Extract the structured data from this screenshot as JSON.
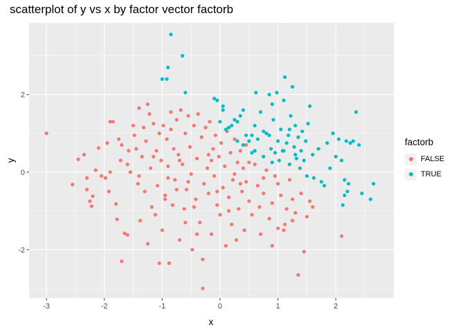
{
  "chart_data": {
    "type": "scatter",
    "title": "scatterplot of y vs x by factor vector factorb",
    "xlabel": "x",
    "ylabel": "y",
    "xlim": [
      -3.3,
      3.0
    ],
    "ylim": [
      -3.25,
      3.85
    ],
    "x_ticks": [
      -3,
      -2,
      -1,
      0,
      1,
      2
    ],
    "x_tick_labels": [
      "-3",
      "-2",
      "-1",
      "0",
      "1",
      "2"
    ],
    "y_ticks": [
      -2,
      0,
      2
    ],
    "y_tick_labels": [
      "-2",
      "0",
      "2"
    ],
    "grid": true,
    "legend": {
      "title": "factorb",
      "position": "right"
    },
    "series": [
      {
        "name": "FALSE",
        "color": "#F8766D",
        "points": [
          [
            -3.0,
            1.0
          ],
          [
            -2.55,
            -0.32
          ],
          [
            -2.45,
            0.33
          ],
          [
            -2.35,
            0.45
          ],
          [
            -2.3,
            -0.15
          ],
          [
            -2.25,
            -0.75
          ],
          [
            -2.22,
            -0.88
          ],
          [
            -2.2,
            -0.62
          ],
          [
            -2.15,
            0.05
          ],
          [
            -2.1,
            0.62
          ],
          [
            -2.05,
            -0.1
          ],
          [
            -1.98,
            -0.15
          ],
          [
            -1.95,
            0.75
          ],
          [
            -1.92,
            -0.5
          ],
          [
            -1.9,
            1.3
          ],
          [
            -1.85,
            1.3
          ],
          [
            -1.8,
            -0.82
          ],
          [
            -1.78,
            -1.22
          ],
          [
            -1.75,
            0.85
          ],
          [
            -1.72,
            0.3
          ],
          [
            -1.7,
            -2.3
          ],
          [
            -1.65,
            -1.58
          ],
          [
            -1.6,
            -1.62
          ],
          [
            -1.58,
            0.55
          ],
          [
            -1.55,
            0.0
          ],
          [
            -1.5,
            1.2
          ],
          [
            -1.48,
            0.95
          ],
          [
            -1.45,
            0.6
          ],
          [
            -1.42,
            -0.3
          ],
          [
            -1.4,
            1.65
          ],
          [
            -1.38,
            -1.25
          ],
          [
            -1.35,
            0.4
          ],
          [
            -1.32,
            1.15
          ],
          [
            -1.3,
            -0.5
          ],
          [
            -1.28,
            0.8
          ],
          [
            -1.25,
            1.75
          ],
          [
            -1.22,
            1.5
          ],
          [
            -1.2,
            0.1
          ],
          [
            -1.18,
            -0.9
          ],
          [
            -1.15,
            1.25
          ],
          [
            -1.12,
            -1.1
          ],
          [
            -1.1,
            0.55
          ],
          [
            -1.08,
            -0.35
          ],
          [
            -1.05,
            1.0
          ],
          [
            -1.02,
            0.3
          ],
          [
            -1.0,
            -1.5
          ],
          [
            -0.98,
            1.2
          ],
          [
            -0.95,
            -0.6
          ],
          [
            -0.92,
            0.85
          ],
          [
            -0.9,
            0.15
          ],
          [
            -0.88,
            -2.35
          ],
          [
            -0.85,
            1.1
          ],
          [
            -0.82,
            -0.85
          ],
          [
            -0.8,
            0.6
          ],
          [
            -0.78,
            -0.2
          ],
          [
            -0.75,
            1.35
          ],
          [
            -0.72,
            0.45
          ],
          [
            -0.7,
            -1.75
          ],
          [
            -0.68,
            1.6
          ],
          [
            -0.65,
            0.2
          ],
          [
            -0.62,
            -0.95
          ],
          [
            -0.6,
            1.0
          ],
          [
            -0.58,
            -0.45
          ],
          [
            -0.55,
            1.45
          ],
          [
            -0.52,
            0.65
          ],
          [
            -0.5,
            -0.05
          ],
          [
            -0.48,
            -2.0
          ],
          [
            -0.45,
            1.2
          ],
          [
            -0.42,
            -0.7
          ],
          [
            -0.4,
            0.35
          ],
          [
            -0.38,
            1.5
          ],
          [
            -0.35,
            -1.3
          ],
          [
            -0.32,
            0.9
          ],
          [
            -0.3,
            -2.25
          ],
          [
            -0.28,
            -0.3
          ],
          [
            -0.25,
            1.15
          ],
          [
            -0.22,
            0.1
          ],
          [
            -0.2,
            -0.55
          ],
          [
            -0.18,
            1.3
          ],
          [
            -0.15,
            -1.6
          ],
          [
            -0.12,
            0.6
          ],
          [
            -0.1,
            -0.1
          ],
          [
            -0.08,
            0.95
          ],
          [
            -0.05,
            -0.85
          ],
          [
            -0.02,
            0.4
          ],
          [
            0.0,
            -1.1
          ],
          [
            0.02,
            0.75
          ],
          [
            0.05,
            -0.4
          ],
          [
            0.08,
            0.15
          ],
          [
            0.1,
            -1.9
          ],
          [
            0.12,
            1.05
          ],
          [
            0.15,
            -0.65
          ],
          [
            0.18,
            0.5
          ],
          [
            0.2,
            -1.35
          ],
          [
            0.22,
            -0.2
          ],
          [
            0.25,
            0.85
          ],
          [
            0.28,
            -1.75
          ],
          [
            0.3,
            0.25
          ],
          [
            0.32,
            -0.95
          ],
          [
            0.35,
            0.55
          ],
          [
            0.38,
            -0.5
          ],
          [
            0.4,
            0.1
          ],
          [
            0.42,
            -1.5
          ],
          [
            0.45,
            -0.25
          ],
          [
            0.5,
            -0.75
          ],
          [
            0.55,
            -1.1
          ],
          [
            0.6,
            0.2
          ],
          [
            0.65,
            -0.35
          ],
          [
            0.7,
            -1.6
          ],
          [
            0.75,
            -0.55
          ],
          [
            0.8,
            0.05
          ],
          [
            0.85,
            -1.2
          ],
          [
            0.9,
            -0.8
          ],
          [
            0.95,
            -0.1
          ],
          [
            1.0,
            -1.45
          ],
          [
            1.05,
            -0.6
          ],
          [
            1.1,
            -1.5
          ],
          [
            1.12,
            -1.35
          ],
          [
            1.15,
            -0.95
          ],
          [
            1.2,
            -0.2
          ],
          [
            1.25,
            -0.7
          ],
          [
            1.3,
            -1.05
          ],
          [
            1.35,
            -2.65
          ],
          [
            1.4,
            -0.55
          ],
          [
            1.45,
            -2.05
          ],
          [
            1.5,
            -1.15
          ],
          [
            1.55,
            -0.75
          ],
          [
            1.6,
            -0.9
          ],
          [
            2.1,
            -1.65
          ],
          [
            -0.6,
            -1.3
          ],
          [
            -0.9,
            -0.15
          ],
          [
            -1.6,
            0.2
          ],
          [
            -0.3,
            -3.0
          ],
          [
            -1.05,
            -2.35
          ],
          [
            -0.7,
            0.3
          ],
          [
            -0.45,
            -0.9
          ],
          [
            -0.2,
            0.45
          ],
          [
            0.45,
            0.7
          ],
          [
            -1.25,
            -1.85
          ],
          [
            -0.85,
            1.55
          ],
          [
            -0.15,
            0.3
          ],
          [
            0.25,
            -0.05
          ],
          [
            0.68,
            -0.9
          ],
          [
            1.0,
            -0.3
          ],
          [
            -1.9,
            0.0
          ],
          [
            -2.3,
            -0.45
          ],
          [
            -1.4,
            -0.1
          ],
          [
            -0.55,
            -0.25
          ],
          [
            0.15,
            -1.0
          ],
          [
            0.5,
            0.25
          ],
          [
            0.9,
            -1.9
          ],
          [
            1.25,
            -1.25
          ],
          [
            -0.95,
            -0.7
          ],
          [
            -0.4,
            -1.6
          ],
          [
            -1.15,
            0.4
          ],
          [
            -0.75,
            -0.45
          ],
          [
            -0.05,
            -0.5
          ],
          [
            0.35,
            -0.3
          ],
          [
            0.75,
            -0.15
          ],
          [
            -1.7,
            0.7
          ]
        ]
      },
      {
        "name": "TRUE",
        "color": "#00BFC4",
        "points": [
          [
            -0.85,
            3.55
          ],
          [
            -0.65,
            3.0
          ],
          [
            -0.9,
            2.7
          ],
          [
            -1.0,
            2.4
          ],
          [
            -0.92,
            2.4
          ],
          [
            -0.6,
            2.05
          ],
          [
            -0.1,
            1.9
          ],
          [
            -0.05,
            1.85
          ],
          [
            0.05,
            1.7
          ],
          [
            0.05,
            1.6
          ],
          [
            0.0,
            1.3
          ],
          [
            0.1,
            1.1
          ],
          [
            0.15,
            1.15
          ],
          [
            0.2,
            1.2
          ],
          [
            0.25,
            1.35
          ],
          [
            0.3,
            1.3
          ],
          [
            0.35,
            1.45
          ],
          [
            0.4,
            1.6
          ],
          [
            0.45,
            0.95
          ],
          [
            0.5,
            0.8
          ],
          [
            0.55,
            0.5
          ],
          [
            0.6,
            1.2
          ],
          [
            0.62,
            2.05
          ],
          [
            0.65,
            0.85
          ],
          [
            0.7,
            1.55
          ],
          [
            0.75,
            0.4
          ],
          [
            0.8,
            1.0
          ],
          [
            0.85,
            2.0
          ],
          [
            0.88,
            0.6
          ],
          [
            0.9,
            1.75
          ],
          [
            0.92,
            1.35
          ],
          [
            0.95,
            0.5
          ],
          [
            0.98,
            2.05
          ],
          [
            1.0,
            0.8
          ],
          [
            1.02,
            0.3
          ],
          [
            1.05,
            1.1
          ],
          [
            1.08,
            0.55
          ],
          [
            1.1,
            1.85
          ],
          [
            1.12,
            2.45
          ],
          [
            1.15,
            0.75
          ],
          [
            1.18,
            0.95
          ],
          [
            1.2,
            0.2
          ],
          [
            1.22,
            1.45
          ],
          [
            1.25,
            2.2
          ],
          [
            1.28,
            0.65
          ],
          [
            1.3,
            1.2
          ],
          [
            1.32,
            0.35
          ],
          [
            1.35,
            0.9
          ],
          [
            1.38,
            0.1
          ],
          [
            1.4,
            0.55
          ],
          [
            1.42,
            1.05
          ],
          [
            1.45,
            0.3
          ],
          [
            1.48,
            0.8
          ],
          [
            1.5,
            -0.1
          ],
          [
            1.52,
            1.25
          ],
          [
            1.55,
            1.7
          ],
          [
            1.6,
            0.45
          ],
          [
            1.62,
            -0.15
          ],
          [
            1.7,
            0.6
          ],
          [
            1.75,
            -0.25
          ],
          [
            1.8,
            -0.35
          ],
          [
            1.85,
            0.75
          ],
          [
            1.9,
            0.1
          ],
          [
            1.95,
            1.0
          ],
          [
            2.0,
            0.4
          ],
          [
            2.05,
            0.85
          ],
          [
            2.1,
            0.3
          ],
          [
            2.12,
            -0.85
          ],
          [
            2.15,
            -0.2
          ],
          [
            2.18,
            0.8
          ],
          [
            2.2,
            -0.5
          ],
          [
            2.22,
            -0.3
          ],
          [
            2.25,
            0.75
          ],
          [
            2.3,
            0.8
          ],
          [
            2.35,
            1.55
          ],
          [
            2.4,
            0.7
          ],
          [
            2.45,
            -0.55
          ],
          [
            2.6,
            -0.7
          ],
          [
            2.65,
            -0.3
          ],
          [
            0.3,
            0.8
          ],
          [
            0.4,
            0.7
          ],
          [
            1.1,
            0.55
          ],
          [
            0.75,
            1.05
          ],
          [
            1.2,
            1.1
          ],
          [
            2.15,
            -0.6
          ],
          [
            0.55,
            0.95
          ],
          [
            0.85,
            0.95
          ],
          [
            1.3,
            0.45
          ],
          [
            0.6,
            0.55
          ],
          [
            0.9,
            0.25
          ]
        ]
      }
    ]
  }
}
